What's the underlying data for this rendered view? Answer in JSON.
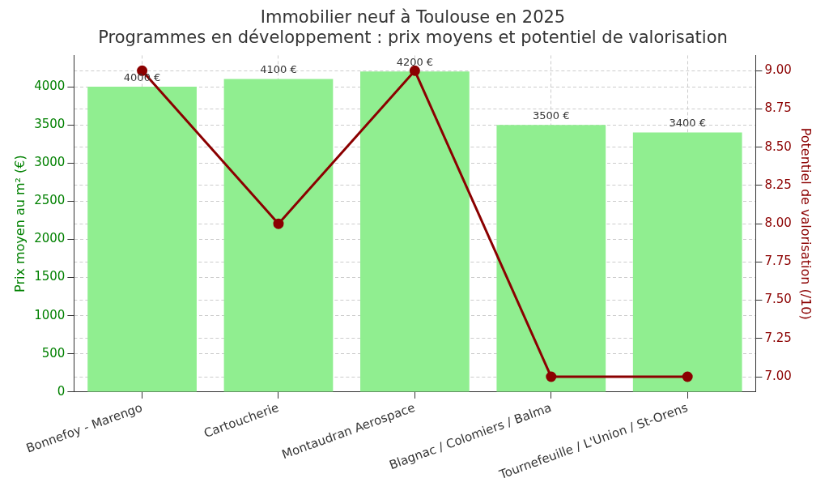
{
  "chart_data": {
    "type": "bar",
    "title": "Immobilier neuf à Toulouse en 2025",
    "subtitle": "Programmes en développement : prix moyens et potentiel de valorisation",
    "ylabel": "Prix moyen au m² (€)",
    "y2label": "Potentiel de valorisation (/10)",
    "categories": [
      "Bonnefoy - Marengo",
      "Cartoucherie",
      "Montaudran Aerospace",
      "Blagnac / Colomiers / Balma",
      "Tournefeuille / L'Union / St-Orens"
    ],
    "series": [
      {
        "color": "#90ee90",
        "values": [
          4000,
          4100,
          4200,
          3500,
          3400
        ],
        "value_labels": [
          "4000 €",
          "4100 €",
          "4200 €",
          "3500 €",
          "3400 €"
        ]
      },
      {
        "type": "line",
        "axis": "y2",
        "color": "#8b0000",
        "values": [
          9,
          8,
          9,
          7,
          7
        ],
        "marker": "circle"
      }
    ],
    "ylim": [
      0,
      4410
    ],
    "yticks": [
      0,
      500,
      1000,
      1500,
      2000,
      2500,
      3000,
      3500,
      4000
    ],
    "y2lim": [
      6.9,
      9.1
    ],
    "y2ticks": [
      {
        "value": 7,
        "label": "7.00"
      },
      {
        "value": 7.25,
        "label": "7.25"
      },
      {
        "value": 7.5,
        "label": "7.50"
      },
      {
        "value": 7.75,
        "label": "7.75"
      },
      {
        "value": 8,
        "label": "8.00"
      },
      {
        "value": 8.25,
        "label": "8.25"
      },
      {
        "value": 8.5,
        "label": "8.50"
      },
      {
        "value": 8.75,
        "label": "8.75"
      },
      {
        "value": 9,
        "label": "9.00"
      }
    ],
    "grid": true,
    "legend": false
  }
}
